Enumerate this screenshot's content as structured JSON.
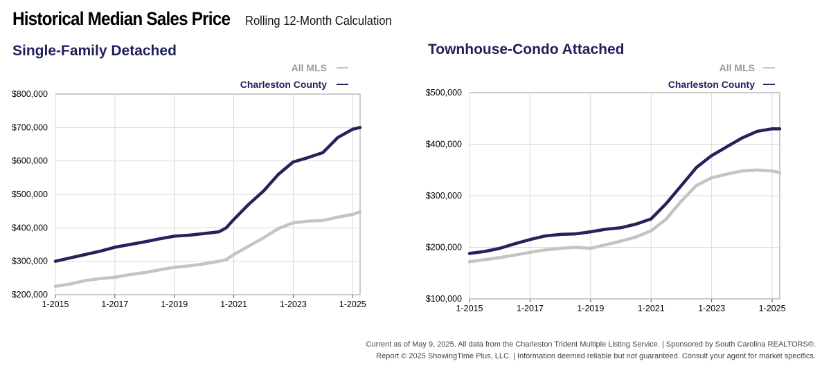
{
  "header": {
    "title": "Historical Median Sales Price",
    "subtitle": "Rolling 12-Month Calculation"
  },
  "footer": {
    "line1": "Current as of May 9, 2025. All data from the Charleston Trident Multiple Listing Service.  |  Sponsored by South Carolina REALTORS®.",
    "line2": "Report © 2025 ShowingTime Plus, LLC.  |  Information deemed reliable but not guaranteed. Consult your agent for market specifics."
  },
  "colors": {
    "all_mls": "#c4c4c4",
    "charleston": "#23235e",
    "title": "#1f1f5c",
    "grid": "#d9d9d9"
  },
  "chart_data": [
    {
      "type": "line",
      "title": "Single-Family Detached",
      "x_tick_labels": [
        "1-2015",
        "1-2017",
        "1-2019",
        "1-2021",
        "1-2023",
        "1-2025"
      ],
      "x_range": [
        "2015-01",
        "2025-04"
      ],
      "y_tick_labels": [
        "$200,000",
        "$300,000",
        "$400,000",
        "$500,000",
        "$600,000",
        "$700,000",
        "$800,000"
      ],
      "ylim": [
        200000,
        800000
      ],
      "grid": true,
      "legend": "top-right",
      "series": [
        {
          "name": "All MLS",
          "color": "#c4c4c4",
          "points": [
            [
              "2015-01",
              225000
            ],
            [
              "2015-07",
              232000
            ],
            [
              "2016-01",
              242000
            ],
            [
              "2016-07",
              248000
            ],
            [
              "2017-01",
              252000
            ],
            [
              "2017-07",
              260000
            ],
            [
              "2018-01",
              266000
            ],
            [
              "2018-07",
              274000
            ],
            [
              "2019-01",
              282000
            ],
            [
              "2019-07",
              286000
            ],
            [
              "2020-01",
              292000
            ],
            [
              "2020-07",
              300000
            ],
            [
              "2020-10",
              305000
            ],
            [
              "2021-01",
              320000
            ],
            [
              "2021-07",
              345000
            ],
            [
              "2022-01",
              370000
            ],
            [
              "2022-07",
              398000
            ],
            [
              "2023-01",
              415000
            ],
            [
              "2023-07",
              420000
            ],
            [
              "2024-01",
              422000
            ],
            [
              "2024-07",
              432000
            ],
            [
              "2025-01",
              440000
            ],
            [
              "2025-04",
              448000
            ]
          ]
        },
        {
          "name": "Charleston County",
          "color": "#23235e",
          "points": [
            [
              "2015-01",
              300000
            ],
            [
              "2015-07",
              310000
            ],
            [
              "2016-01",
              320000
            ],
            [
              "2016-07",
              330000
            ],
            [
              "2017-01",
              342000
            ],
            [
              "2017-07",
              350000
            ],
            [
              "2018-01",
              358000
            ],
            [
              "2018-07",
              367000
            ],
            [
              "2019-01",
              375000
            ],
            [
              "2019-07",
              378000
            ],
            [
              "2020-01",
              383000
            ],
            [
              "2020-07",
              388000
            ],
            [
              "2020-10",
              400000
            ],
            [
              "2021-01",
              425000
            ],
            [
              "2021-07",
              470000
            ],
            [
              "2022-01",
              510000
            ],
            [
              "2022-07",
              560000
            ],
            [
              "2023-01",
              597000
            ],
            [
              "2023-07",
              610000
            ],
            [
              "2024-01",
              625000
            ],
            [
              "2024-07",
              670000
            ],
            [
              "2025-01",
              695000
            ],
            [
              "2025-04",
              700000
            ]
          ]
        }
      ]
    },
    {
      "type": "line",
      "title": "Townhouse-Condo Attached",
      "x_tick_labels": [
        "1-2015",
        "1-2017",
        "1-2019",
        "1-2021",
        "1-2023",
        "1-2025"
      ],
      "x_range": [
        "2015-01",
        "2025-04"
      ],
      "y_tick_labels": [
        "$100,000",
        "$200,000",
        "$300,000",
        "$400,000",
        "$500,000"
      ],
      "ylim": [
        100000,
        500000
      ],
      "grid": true,
      "legend": "top-right",
      "series": [
        {
          "name": "All MLS",
          "color": "#c4c4c4",
          "points": [
            [
              "2015-01",
              172000
            ],
            [
              "2015-07",
              176000
            ],
            [
              "2016-01",
              180000
            ],
            [
              "2016-07",
              185000
            ],
            [
              "2017-01",
              190000
            ],
            [
              "2017-07",
              195000
            ],
            [
              "2018-01",
              198000
            ],
            [
              "2018-07",
              200000
            ],
            [
              "2019-01",
              198000
            ],
            [
              "2019-07",
              205000
            ],
            [
              "2020-01",
              212000
            ],
            [
              "2020-07",
              220000
            ],
            [
              "2021-01",
              232000
            ],
            [
              "2021-07",
              255000
            ],
            [
              "2022-01",
              290000
            ],
            [
              "2022-07",
              320000
            ],
            [
              "2023-01",
              335000
            ],
            [
              "2023-07",
              342000
            ],
            [
              "2024-01",
              348000
            ],
            [
              "2024-07",
              350000
            ],
            [
              "2025-01",
              348000
            ],
            [
              "2025-04",
              345000
            ]
          ]
        },
        {
          "name": "Charleston County",
          "color": "#23235e",
          "points": [
            [
              "2015-01",
              188000
            ],
            [
              "2015-07",
              192000
            ],
            [
              "2016-01",
              198000
            ],
            [
              "2016-07",
              207000
            ],
            [
              "2017-01",
              215000
            ],
            [
              "2017-07",
              222000
            ],
            [
              "2018-01",
              225000
            ],
            [
              "2018-07",
              226000
            ],
            [
              "2019-01",
              230000
            ],
            [
              "2019-07",
              235000
            ],
            [
              "2020-01",
              238000
            ],
            [
              "2020-07",
              245000
            ],
            [
              "2021-01",
              255000
            ],
            [
              "2021-07",
              285000
            ],
            [
              "2022-01",
              320000
            ],
            [
              "2022-07",
              355000
            ],
            [
              "2023-01",
              378000
            ],
            [
              "2023-07",
              395000
            ],
            [
              "2024-01",
              412000
            ],
            [
              "2024-07",
              425000
            ],
            [
              "2025-01",
              430000
            ],
            [
              "2025-04",
              430000
            ]
          ]
        }
      ]
    }
  ]
}
